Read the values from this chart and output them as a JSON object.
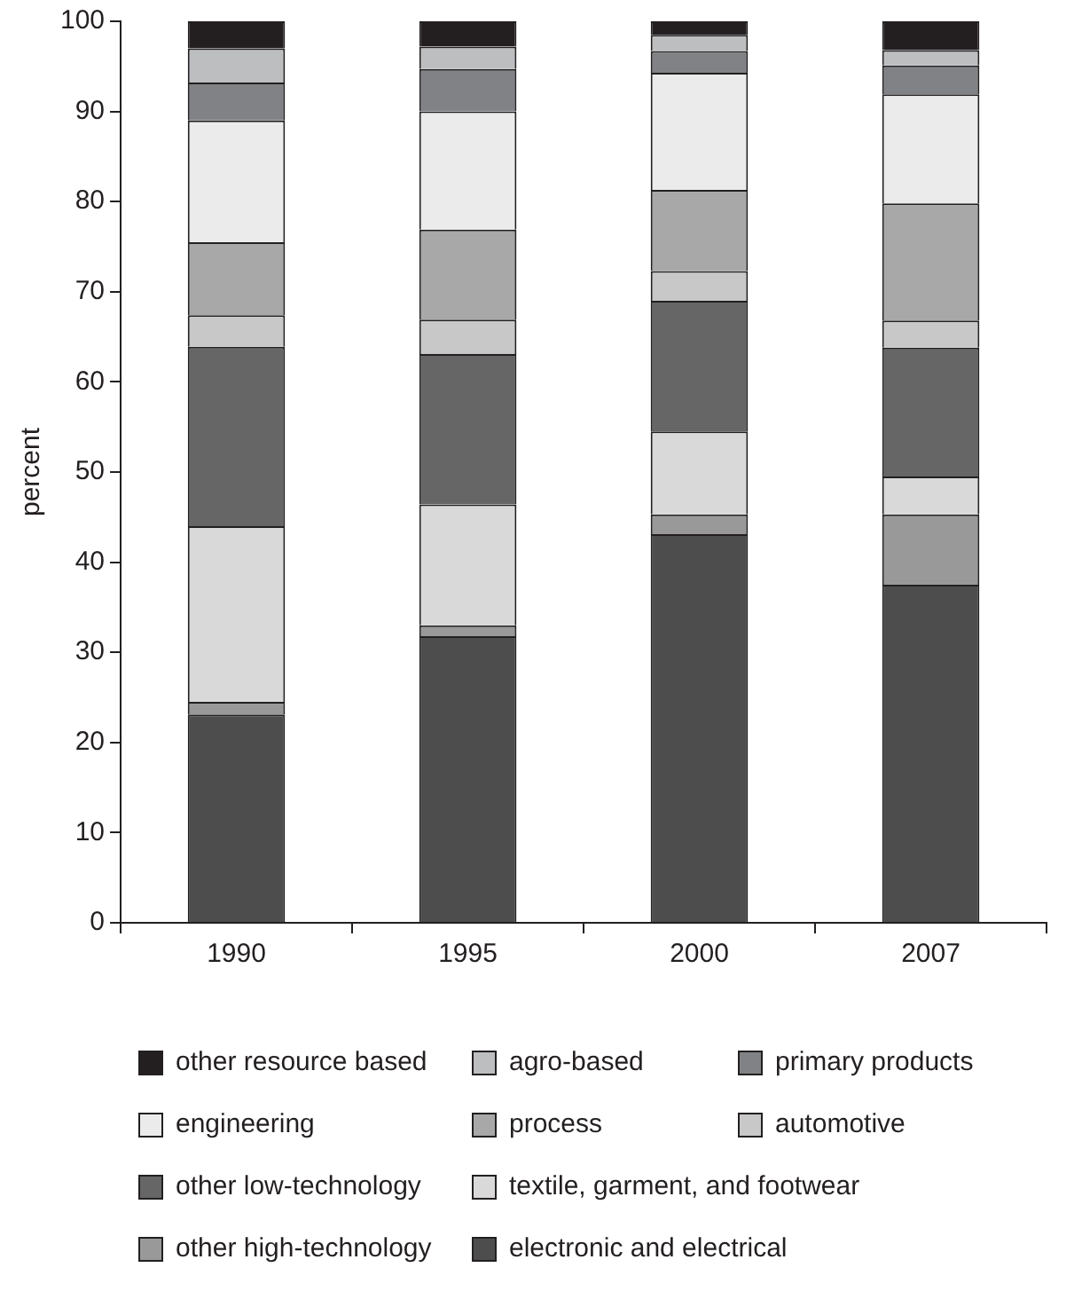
{
  "chart_data": {
    "type": "bar",
    "stacked": true,
    "ylabel": "percent",
    "categories": [
      "1990",
      "1995",
      "2000",
      "2007"
    ],
    "ylim": [
      0,
      100
    ],
    "yticks": [
      0,
      10,
      20,
      30,
      40,
      50,
      60,
      70,
      80,
      90,
      100
    ],
    "grid": false,
    "legend": "bottom",
    "series": [
      {
        "name": "electronic and electrical",
        "color": "#4d4d4d",
        "values": [
          23.1,
          31.8,
          43.1,
          37.5
        ]
      },
      {
        "name": "other high-technology",
        "color": "#999999",
        "values": [
          1.4,
          1.2,
          2.2,
          7.8
        ]
      },
      {
        "name": "textile, garment, and footwear",
        "color": "#d9d9d9",
        "values": [
          19.5,
          13.4,
          9.2,
          4.2
        ]
      },
      {
        "name": "other low-technology",
        "color": "#666666",
        "values": [
          19.9,
          16.7,
          14.5,
          14.3
        ]
      },
      {
        "name": "automotive",
        "color": "#c8c8c8",
        "values": [
          3.5,
          3.8,
          3.3,
          3.0
        ]
      },
      {
        "name": "process",
        "color": "#a8a8a8",
        "values": [
          8.1,
          10.0,
          9.0,
          13.0
        ]
      },
      {
        "name": "engineering",
        "color": "#ebebeb",
        "values": [
          13.5,
          13.1,
          13.0,
          12.1
        ]
      },
      {
        "name": "primary products",
        "color": "#808285",
        "values": [
          4.2,
          4.7,
          2.4,
          3.2
        ]
      },
      {
        "name": "agro-based",
        "color": "#bcbec0",
        "values": [
          3.8,
          2.5,
          1.8,
          1.7
        ]
      },
      {
        "name": "other resource based",
        "color": "#231f20",
        "values": [
          3.0,
          2.8,
          1.5,
          3.2
        ]
      }
    ]
  }
}
